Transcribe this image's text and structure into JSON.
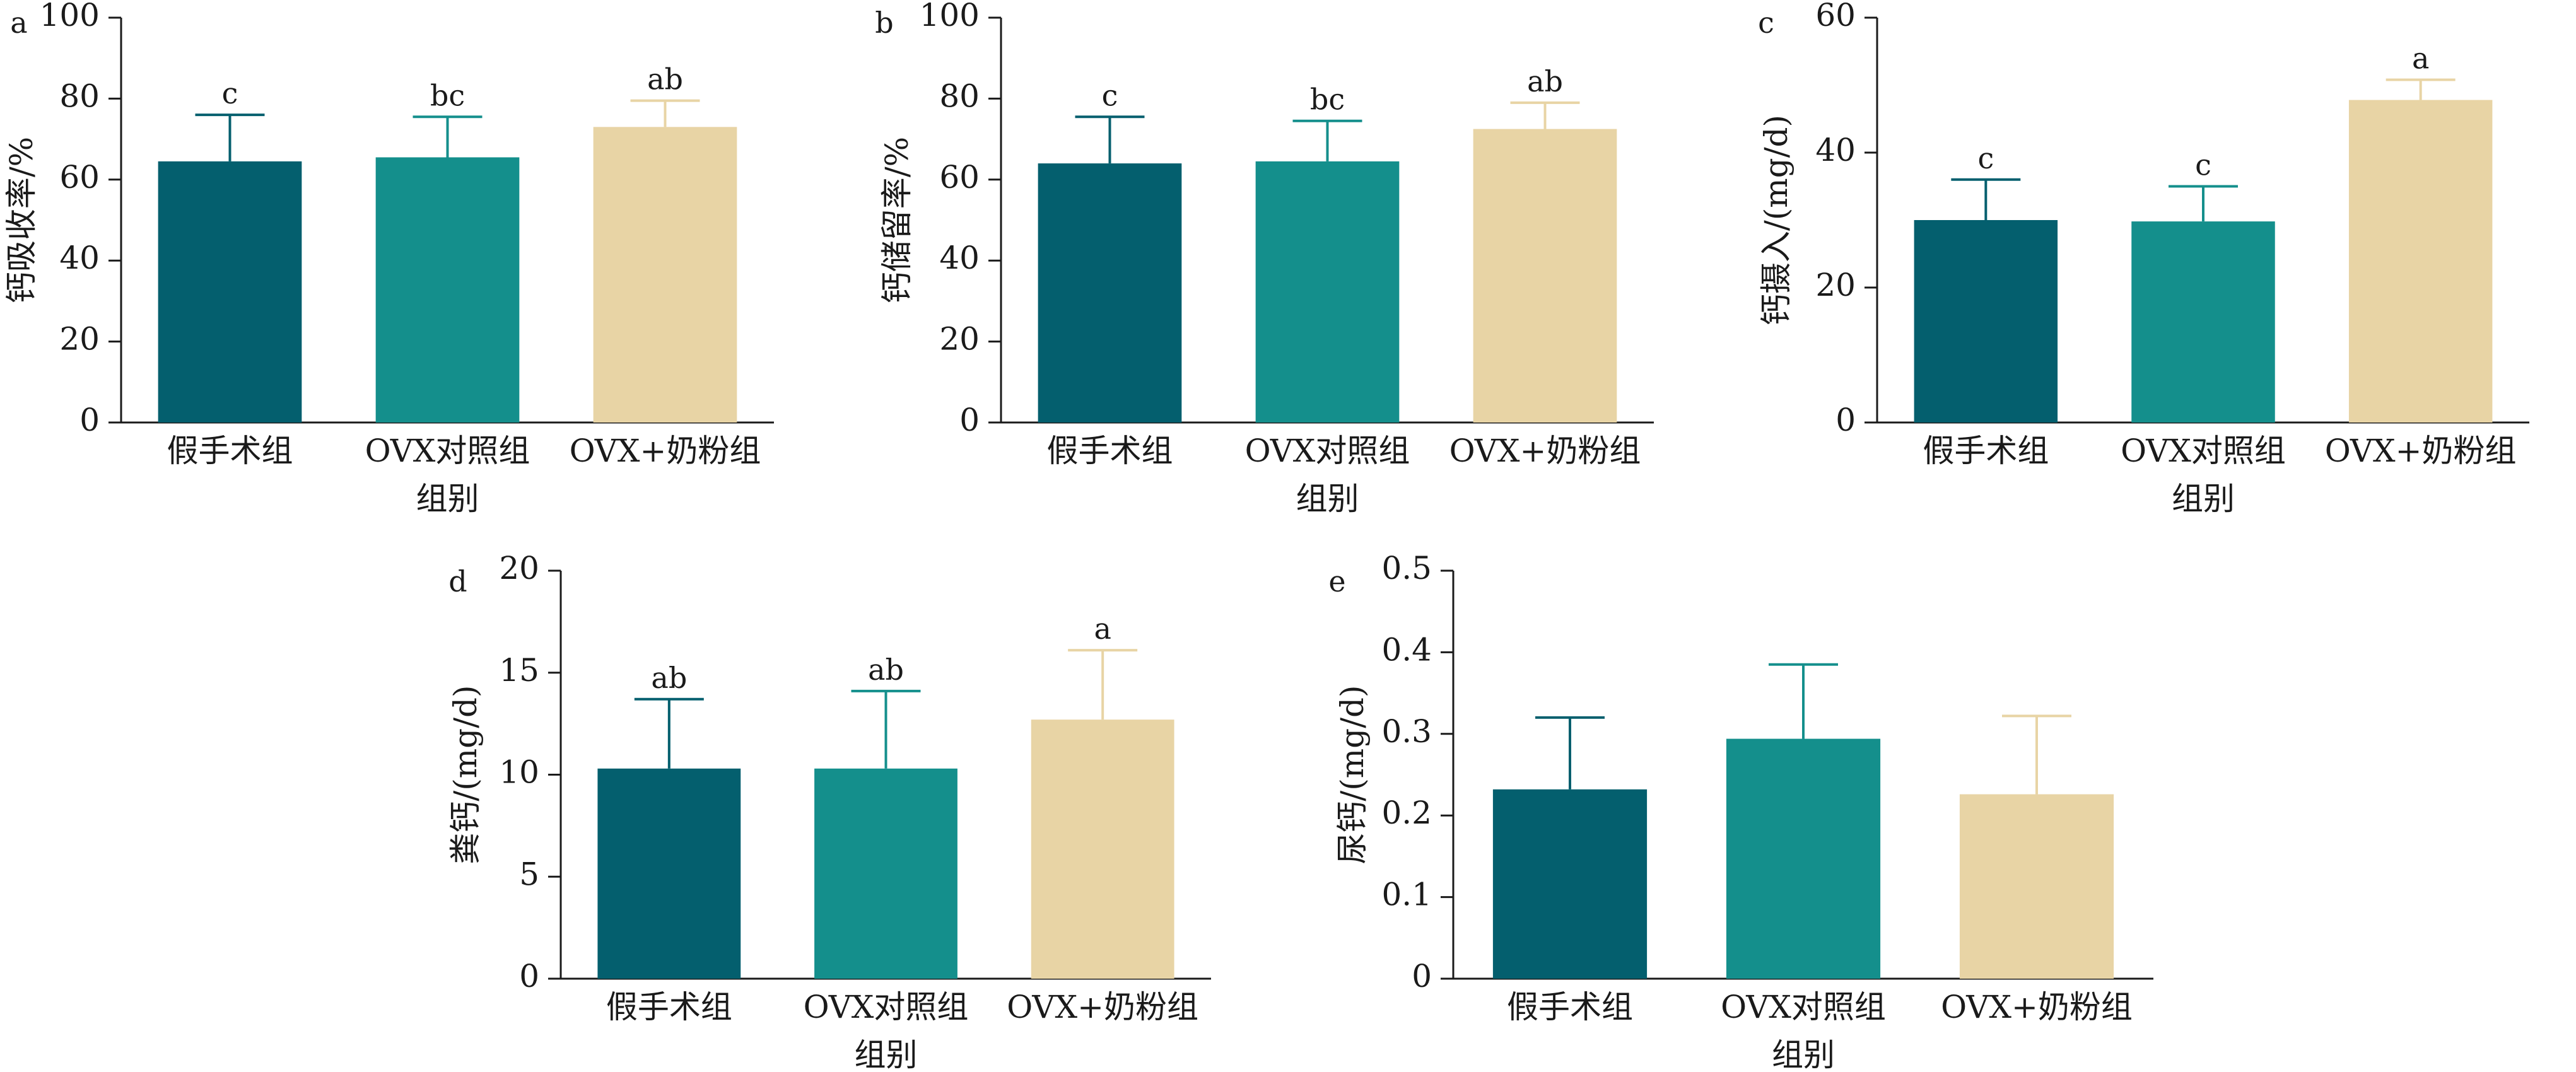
{
  "colors": {
    "series": [
      "#045f6e",
      "#148f8c",
      "#e8d4a5"
    ],
    "axis": "#1a1a1a"
  },
  "chart_data": [
    {
      "type": "bar",
      "panel": "a",
      "categories": [
        "假手术组",
        "OVX对照组",
        "OVX+奶粉组"
      ],
      "values": [
        64.5,
        65.5,
        73.0
      ],
      "errors": [
        11.5,
        10.0,
        6.5
      ],
      "significance": [
        "c",
        "bc",
        "ab"
      ],
      "xlabel": "组别",
      "ylabel": "钙吸收率/%",
      "ylim": [
        0,
        100
      ],
      "yticks": [
        0,
        20,
        40,
        60,
        80,
        100
      ]
    },
    {
      "type": "bar",
      "panel": "b",
      "categories": [
        "假手术组",
        "OVX对照组",
        "OVX+奶粉组"
      ],
      "values": [
        64.0,
        64.5,
        72.5
      ],
      "errors": [
        11.5,
        10.0,
        6.5
      ],
      "significance": [
        "c",
        "bc",
        "ab"
      ],
      "xlabel": "组别",
      "ylabel": "钙储留率/%",
      "ylim": [
        0,
        100
      ],
      "yticks": [
        0,
        20,
        40,
        60,
        80,
        100
      ]
    },
    {
      "type": "bar",
      "panel": "c",
      "categories": [
        "假手术组",
        "OVX对照组",
        "OVX+奶粉组"
      ],
      "values": [
        30.0,
        29.8,
        47.8
      ],
      "errors": [
        6.0,
        5.2,
        3.0
      ],
      "significance": [
        "c",
        "c",
        "a"
      ],
      "xlabel": "组别",
      "ylabel": "钙摄入/(mg/d)",
      "ylim": [
        0,
        60
      ],
      "yticks": [
        0,
        20,
        40,
        60
      ]
    },
    {
      "type": "bar",
      "panel": "d",
      "categories": [
        "假手术组",
        "OVX对照组",
        "OVX+奶粉组"
      ],
      "values": [
        10.3,
        10.3,
        12.7
      ],
      "errors": [
        3.4,
        3.8,
        3.4
      ],
      "significance": [
        "ab",
        "ab",
        "a"
      ],
      "xlabel": "组别",
      "ylabel": "粪钙/(mg/d)",
      "ylim": [
        0,
        20
      ],
      "yticks": [
        0,
        5,
        10,
        15,
        20
      ]
    },
    {
      "type": "bar",
      "panel": "e",
      "categories": [
        "假手术组",
        "OVX对照组",
        "OVX+奶粉组"
      ],
      "values": [
        0.232,
        0.294,
        0.226
      ],
      "errors": [
        0.088,
        0.091,
        0.096
      ],
      "significance": [
        "",
        "",
        ""
      ],
      "xlabel": "组别",
      "ylabel": "尿钙/(mg/d)",
      "ylim": [
        0,
        0.5
      ],
      "yticks": [
        0,
        0.1,
        0.2,
        0.3,
        0.4,
        0.5
      ]
    }
  ]
}
